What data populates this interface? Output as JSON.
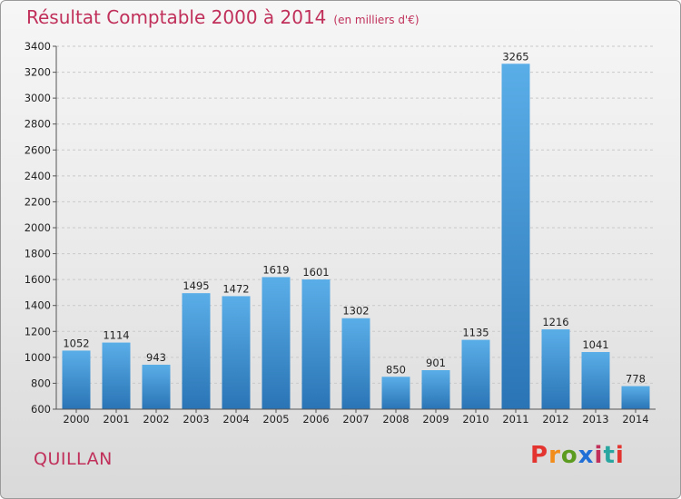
{
  "header": {
    "title": "Résultat Comptable 2000 à 2014",
    "subtitle": "(en milliers d'€)"
  },
  "footer": {
    "town": "QUILLAN",
    "logo": "Proxiti"
  },
  "colors": {
    "title": "#c0305a",
    "bar_top": "#5aaee8",
    "bar_bottom": "#2a74b5"
  },
  "chart_data": {
    "type": "bar",
    "title": "Résultat Comptable 2000 à 2014",
    "subtitle": "(en milliers d'€)",
    "categories": [
      "2000",
      "2001",
      "2002",
      "2003",
      "2004",
      "2005",
      "2006",
      "2007",
      "2008",
      "2009",
      "2010",
      "2011",
      "2012",
      "2013",
      "2014"
    ],
    "values": [
      1052,
      1114,
      943,
      1495,
      1472,
      1619,
      1601,
      1302,
      850,
      901,
      1135,
      3265,
      1216,
      1041,
      778
    ],
    "ylim": [
      600,
      3400
    ],
    "yticks": [
      600,
      800,
      1000,
      1200,
      1400,
      1600,
      1800,
      2000,
      2200,
      2400,
      2600,
      2800,
      3000,
      3200,
      3400
    ],
    "grid": true
  }
}
